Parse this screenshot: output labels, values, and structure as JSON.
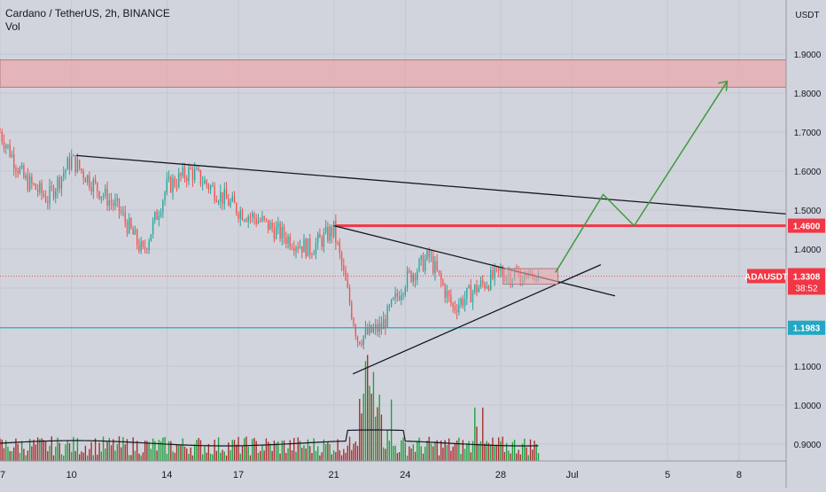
{
  "header": {
    "symbol_line": "Cardano / TetherUS, 2h, BINANCE",
    "volume_label": "Vol"
  },
  "chart_data": {
    "type": "candlestick",
    "symbol": "ADAUSDT",
    "interval": "2h",
    "exchange": "BINANCE",
    "quote_currency": "USDT",
    "y_axis_unit": "USDT",
    "y_ticks": [
      1.9,
      1.8,
      1.7,
      1.6,
      1.5,
      1.4,
      1.3,
      1.1,
      1.0,
      0.9
    ],
    "y_tick_labels": [
      "1.9000",
      "1.8000",
      "1.7000",
      "1.6000",
      "1.5000",
      "1.4000",
      "1.3000",
      "1.1000",
      "1.0000",
      "0.9000"
    ],
    "ylim": [
      0.85,
      2.0
    ],
    "x_tick_labels": [
      "7",
      "10",
      "14",
      "17",
      "21",
      "24",
      "28",
      "Jul",
      "5",
      "8"
    ],
    "last_price": 1.3308,
    "last_price_label": "1.3308",
    "countdown": "38:52",
    "price_badge_label": "ADAUSDT",
    "levels": [
      {
        "name": "resistance",
        "value": 1.46,
        "label": "1.4600",
        "color": "#f23645"
      },
      {
        "name": "support",
        "value": 1.1983,
        "label": "1.1983",
        "color": "#22a8c4"
      }
    ],
    "supply_zone": {
      "low": 1.815,
      "high": 1.885,
      "color": "#e8a9ad"
    },
    "projected_path": [
      1.34,
      1.54,
      1.46,
      1.83
    ],
    "ohlc_approx": [
      {
        "d": "7",
        "price": 1.7
      },
      {
        "d": "8",
        "price": 1.58
      },
      {
        "d": "9",
        "price": 1.53
      },
      {
        "d": "10",
        "price": 1.63
      },
      {
        "d": "11",
        "price": 1.56
      },
      {
        "d": "12",
        "price": 1.5
      },
      {
        "d": "13",
        "price": 1.39
      },
      {
        "d": "14",
        "price": 1.56
      },
      {
        "d": "15",
        "price": 1.6
      },
      {
        "d": "16",
        "price": 1.55
      },
      {
        "d": "17",
        "price": 1.5
      },
      {
        "d": "18",
        "price": 1.47
      },
      {
        "d": "19",
        "price": 1.43
      },
      {
        "d": "20",
        "price": 1.4
      },
      {
        "d": "21",
        "price": 1.45
      },
      {
        "d": "22",
        "price": 1.17
      },
      {
        "d": "23",
        "price": 1.2
      },
      {
        "d": "24",
        "price": 1.32
      },
      {
        "d": "25",
        "price": 1.38
      },
      {
        "d": "26",
        "price": 1.25
      },
      {
        "d": "27",
        "price": 1.3
      },
      {
        "d": "28",
        "price": 1.34
      },
      {
        "d": "29",
        "price": 1.33
      }
    ],
    "colors": {
      "up": "#26a69a",
      "down": "#ef5350",
      "vol_up": "#1f9d3a",
      "vol_down": "#a52a2a",
      "projection": "#3d9a3d",
      "trend": "#131722"
    }
  }
}
